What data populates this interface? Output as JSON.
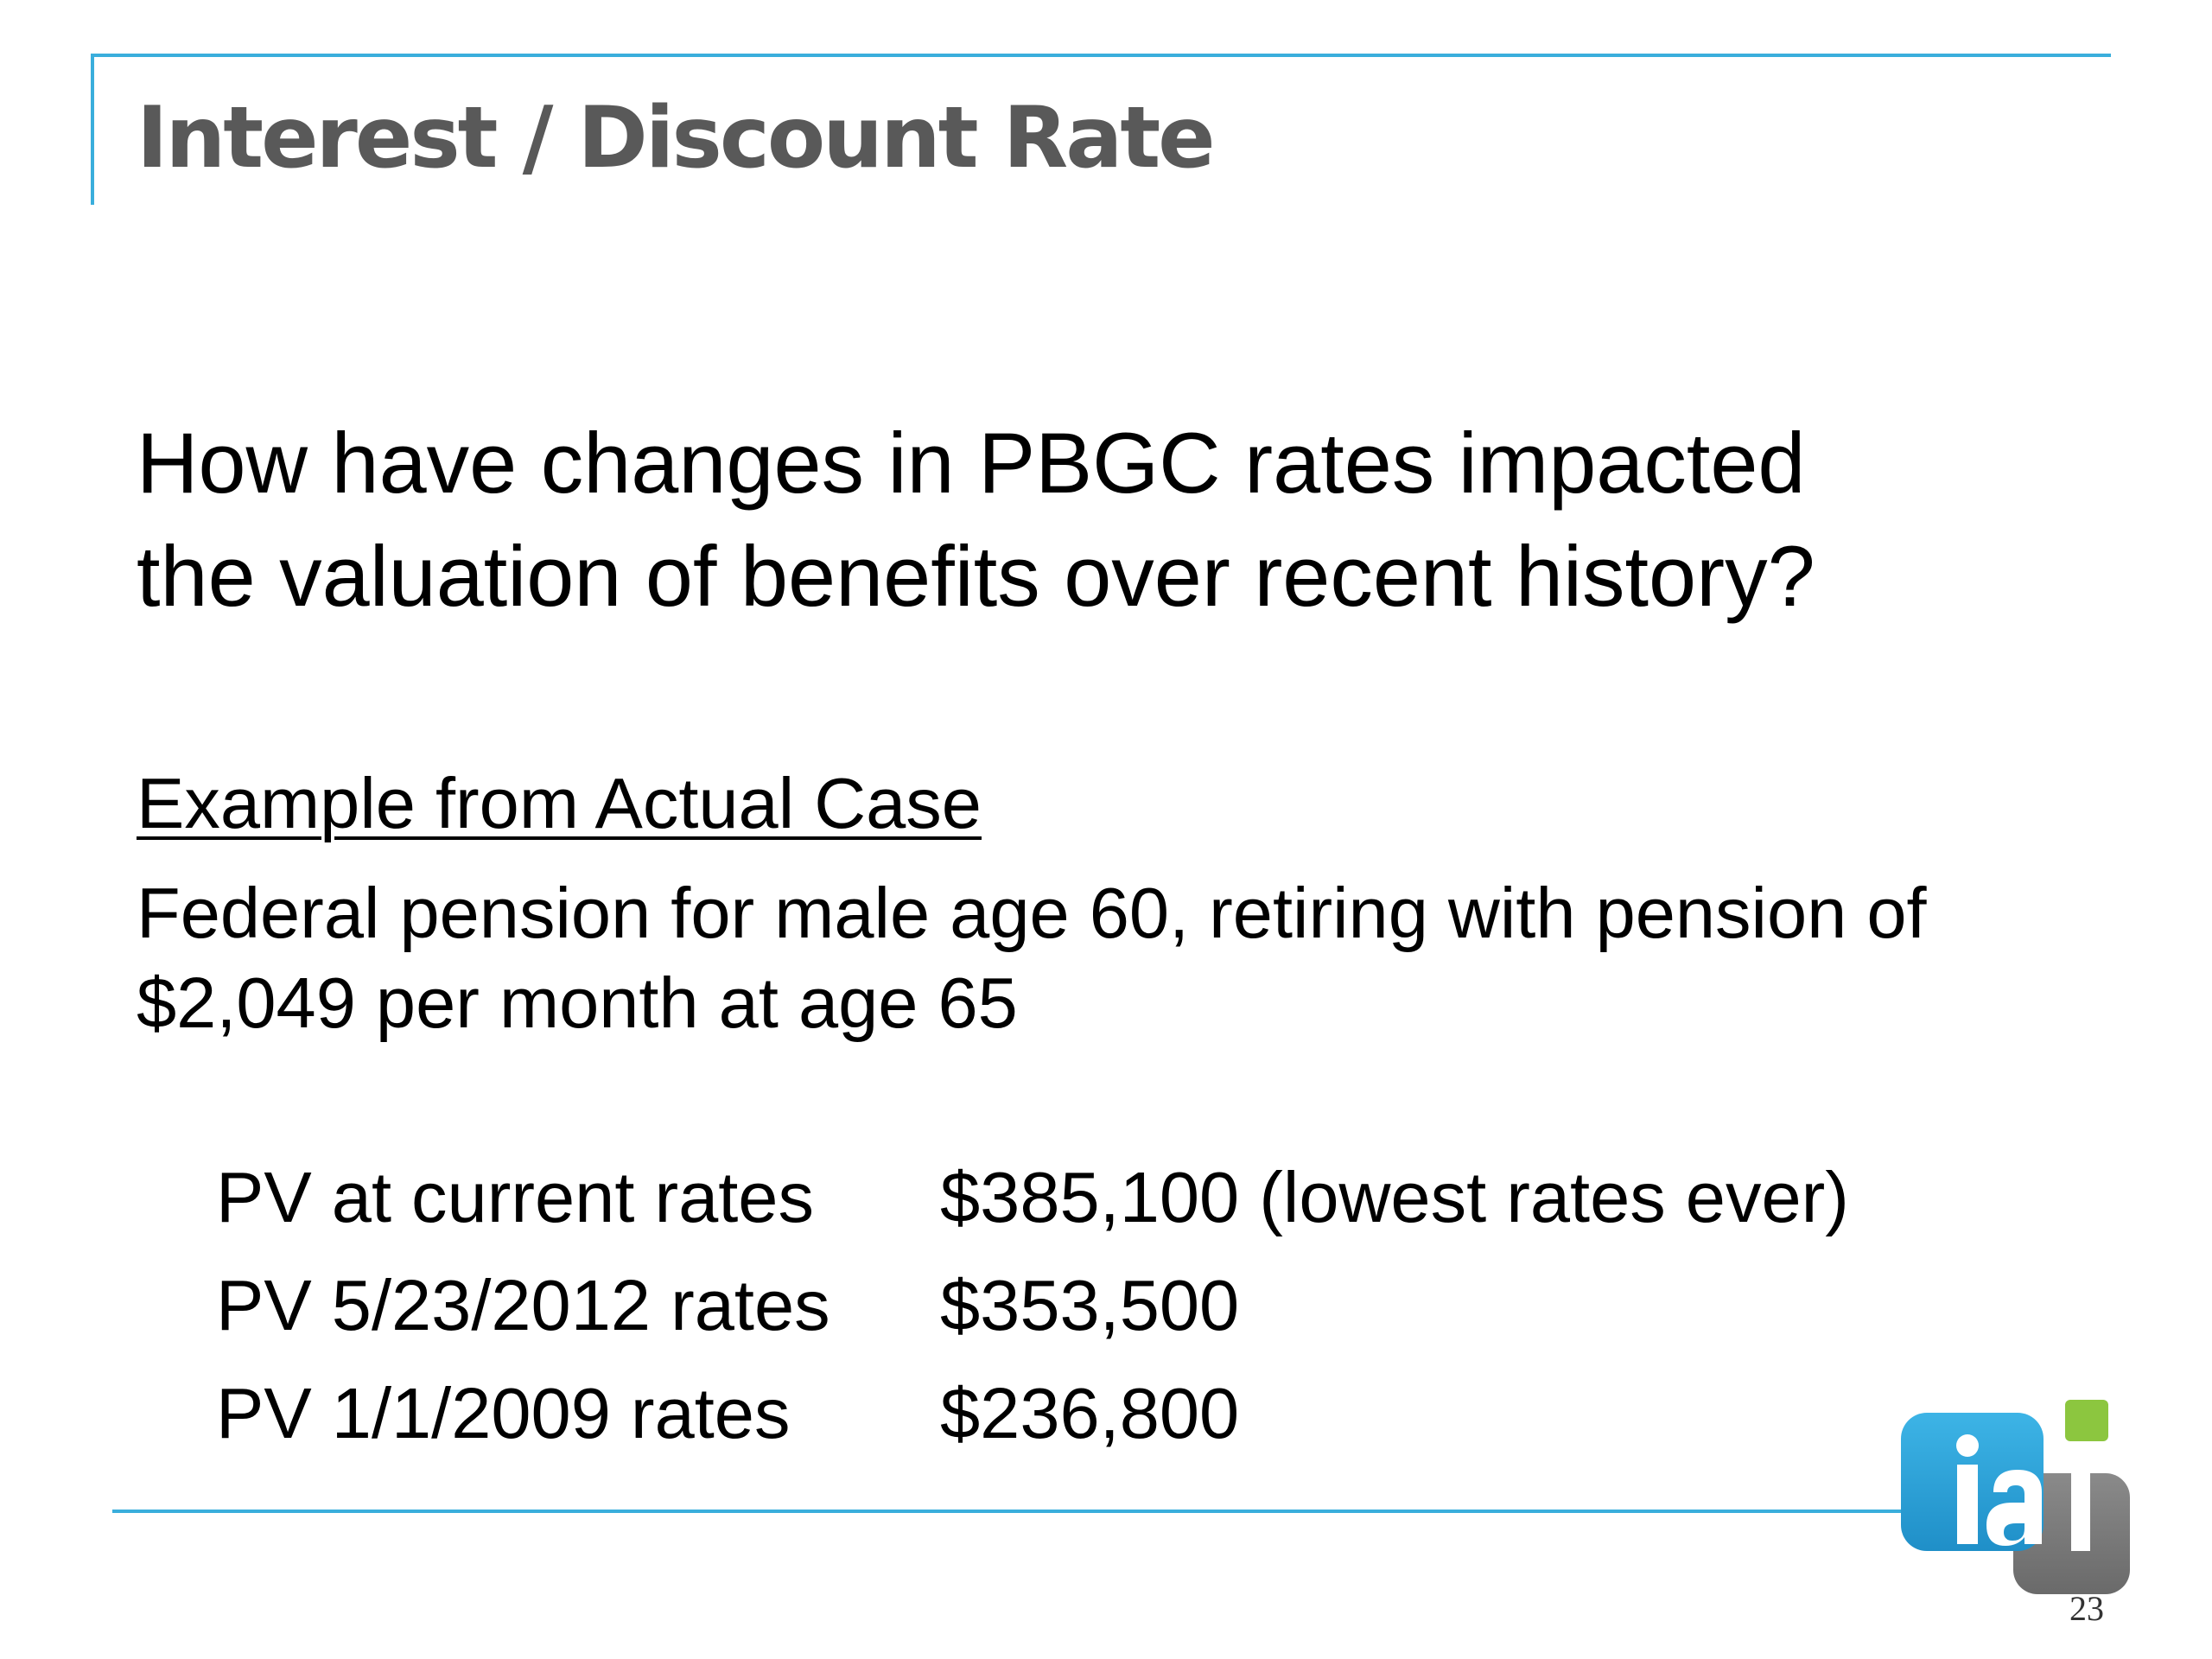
{
  "slide": {
    "title": "Interest / Discount Rate",
    "question_line_1": "How have changes in PBGC rates impacted",
    "question_line_2": "the valuation of benefits over recent history?",
    "example_heading": "Example from Actual Case",
    "description_line_1": "Federal pension for male age 60, retiring with pension of",
    "description_line_2": "$2,049 per month at age 65",
    "pv_rows": [
      {
        "label": "PV at current rates",
        "value": "$385,100 (lowest rates ever)"
      },
      {
        "label": "PV 5/23/2012 rates",
        "value": "$353,500"
      },
      {
        "label": "PV 1/1/2009 rates",
        "value": "$236,800"
      }
    ],
    "page_number": "23",
    "logo": {
      "name": "ial-logo",
      "text": "ial",
      "colors": {
        "blue": "#2a9fd6",
        "gray": "#7a7a7a",
        "green": "#8cc63f"
      }
    },
    "accent_color": "#3aaedc",
    "title_color": "#595959"
  }
}
